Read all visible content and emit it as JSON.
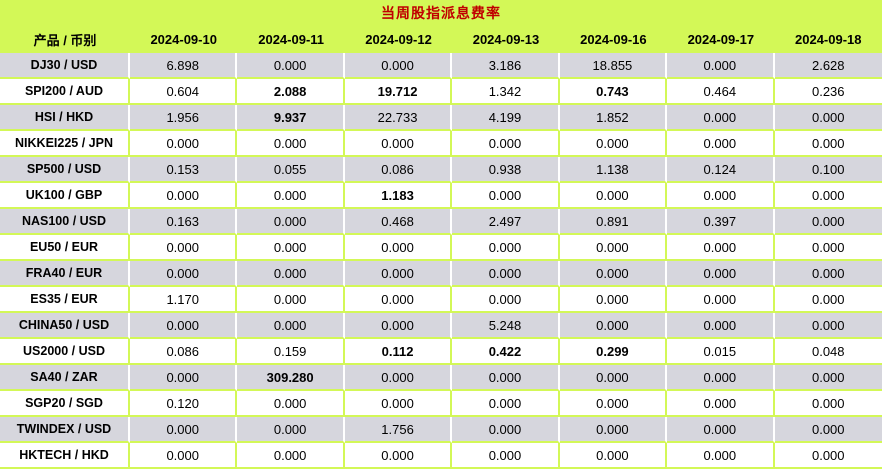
{
  "title": "当周股指派息费率",
  "colors": {
    "background_green": "#d3f857",
    "gray_row": "#d6d6dd",
    "title_red": "#c00000"
  },
  "table": {
    "product_header": "产品 / 币别",
    "date_headers": [
      "2024-09-10",
      "2024-09-11",
      "2024-09-12",
      "2024-09-13",
      "2024-09-16",
      "2024-09-17",
      "2024-09-18"
    ],
    "rows": [
      {
        "product": "DJ30 / USD",
        "values": [
          "6.898",
          "0.000",
          "0.000",
          "3.186",
          "18.855",
          "0.000",
          "2.628"
        ],
        "bold": []
      },
      {
        "product": "SPI200 / AUD",
        "values": [
          "0.604",
          "2.088",
          "19.712",
          "1.342",
          "0.743",
          "0.464",
          "0.236"
        ],
        "bold": [
          1,
          2,
          4
        ]
      },
      {
        "product": "HSI / HKD",
        "values": [
          "1.956",
          "9.937",
          "22.733",
          "4.199",
          "1.852",
          "0.000",
          "0.000"
        ],
        "bold": [
          1
        ]
      },
      {
        "product": "NIKKEI225 / JPN",
        "values": [
          "0.000",
          "0.000",
          "0.000",
          "0.000",
          "0.000",
          "0.000",
          "0.000"
        ],
        "bold": []
      },
      {
        "product": "SP500 / USD",
        "values": [
          "0.153",
          "0.055",
          "0.086",
          "0.938",
          "1.138",
          "0.124",
          "0.100"
        ],
        "bold": []
      },
      {
        "product": "UK100 / GBP",
        "values": [
          "0.000",
          "0.000",
          "1.183",
          "0.000",
          "0.000",
          "0.000",
          "0.000"
        ],
        "bold": [
          2
        ]
      },
      {
        "product": "NAS100 / USD",
        "values": [
          "0.163",
          "0.000",
          "0.468",
          "2.497",
          "0.891",
          "0.397",
          "0.000"
        ],
        "bold": []
      },
      {
        "product": "EU50 / EUR",
        "values": [
          "0.000",
          "0.000",
          "0.000",
          "0.000",
          "0.000",
          "0.000",
          "0.000"
        ],
        "bold": []
      },
      {
        "product": "FRA40 / EUR",
        "values": [
          "0.000",
          "0.000",
          "0.000",
          "0.000",
          "0.000",
          "0.000",
          "0.000"
        ],
        "bold": []
      },
      {
        "product": "ES35 / EUR",
        "values": [
          "1.170",
          "0.000",
          "0.000",
          "0.000",
          "0.000",
          "0.000",
          "0.000"
        ],
        "bold": []
      },
      {
        "product": "CHINA50 / USD",
        "values": [
          "0.000",
          "0.000",
          "0.000",
          "5.248",
          "0.000",
          "0.000",
          "0.000"
        ],
        "bold": []
      },
      {
        "product": "US2000 / USD",
        "values": [
          "0.086",
          "0.159",
          "0.112",
          "0.422",
          "0.299",
          "0.015",
          "0.048"
        ],
        "bold": [
          2,
          3,
          4
        ]
      },
      {
        "product": "SA40 / ZAR",
        "values": [
          "0.000",
          "309.280",
          "0.000",
          "0.000",
          "0.000",
          "0.000",
          "0.000"
        ],
        "bold": [
          1
        ]
      },
      {
        "product": "SGP20 / SGD",
        "values": [
          "0.120",
          "0.000",
          "0.000",
          "0.000",
          "0.000",
          "0.000",
          "0.000"
        ],
        "bold": []
      },
      {
        "product": "TWINDEX / USD",
        "values": [
          "0.000",
          "0.000",
          "1.756",
          "0.000",
          "0.000",
          "0.000",
          "0.000"
        ],
        "bold": []
      },
      {
        "product": "HKTECH / HKD",
        "values": [
          "0.000",
          "0.000",
          "0.000",
          "0.000",
          "0.000",
          "0.000",
          "0.000"
        ],
        "bold": []
      }
    ]
  }
}
